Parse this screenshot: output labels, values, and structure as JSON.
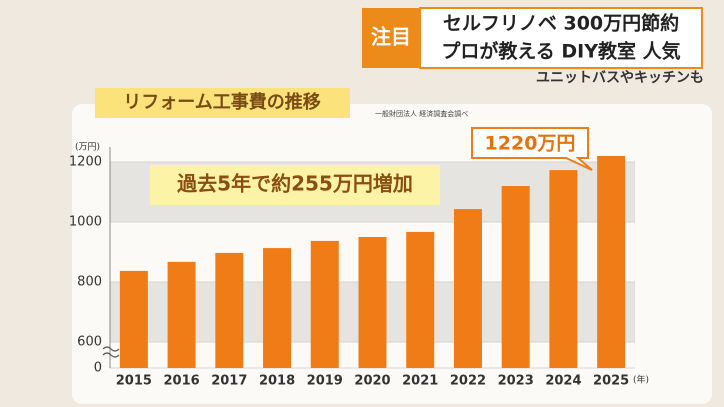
{
  "header": {
    "badge": "注目",
    "line1": "セルフリノベ 300万円節約",
    "line2": "プロが教える DIY教室 人気",
    "subtitle": "ユニットバスやキッチンも"
  },
  "chart_data": {
    "type": "bar",
    "title": "リフォーム工事費の推移",
    "source": "一般財団法人 経済調査会調べ",
    "y_unit": "(万円)",
    "x_unit": "(年)",
    "annotation": "過去5年で約255万円増加",
    "categories": [
      "2015",
      "2016",
      "2017",
      "2018",
      "2019",
      "2020",
      "2021",
      "2022",
      "2023",
      "2024",
      "2025"
    ],
    "values": [
      837,
      867,
      897,
      913,
      937,
      950,
      967,
      1043,
      1120,
      1173,
      1220
    ],
    "value_labels": [
      null,
      null,
      null,
      null,
      null,
      null,
      null,
      null,
      null,
      null,
      "1220万円"
    ],
    "color": "#f07c17",
    "ylim": [
      0,
      1250
    ],
    "yticks": [
      0,
      600,
      800,
      1000,
      1200
    ],
    "axis_break": [
      0,
      600
    ],
    "grid": true
  }
}
